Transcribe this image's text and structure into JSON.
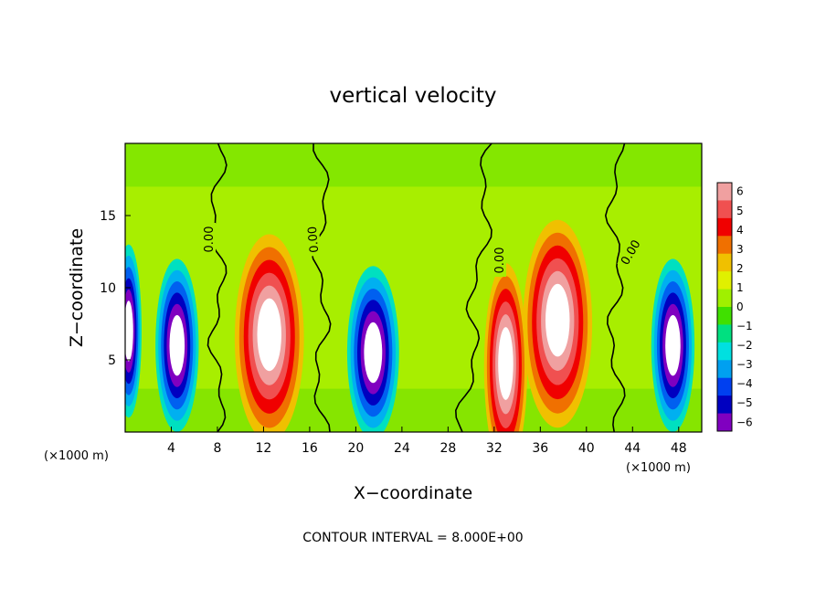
{
  "chart_data": {
    "type": "heatmap",
    "title": "vertical velocity",
    "xlabel": "X−coordinate",
    "ylabel": "Z−coordinate",
    "x_unit_left": "(×1000 m)",
    "x_unit_right": "(×1000 m)",
    "xlim": [
      0,
      50
    ],
    "ylim": [
      0,
      20
    ],
    "xticks": [
      4,
      8,
      12,
      16,
      20,
      24,
      28,
      32,
      36,
      40,
      44,
      48
    ],
    "yticks": [
      5,
      10,
      15
    ],
    "colorbar": {
      "ticks": [
        "6",
        "5",
        "4",
        "3",
        "2",
        "1",
        "0",
        "−1",
        "−2",
        "−3",
        "−4",
        "−5",
        "−6"
      ],
      "range": [
        -6,
        6
      ],
      "colors": [
        "#f0a0a0",
        "#f05050",
        "#f00000",
        "#f07000",
        "#f0c000",
        "#e0f000",
        "#a0f000",
        "#40e000",
        "#00e080",
        "#00e0e0",
        "#00a0f0",
        "#0040f0",
        "#0000c0",
        "#8000c0"
      ]
    },
    "contour_labels": [
      "0.00",
      "0.00",
      "0.00",
      "0.00"
    ],
    "footer": "CONTOUR INTERVAL = 8.000E+00",
    "features": [
      {
        "kind": "updraft",
        "x": 12.5,
        "z": 6.5,
        "w": 4.0
      },
      {
        "kind": "updraft",
        "x": 37.5,
        "z": 7.5,
        "w": 4.0
      },
      {
        "kind": "updraft",
        "x": 33.0,
        "z": 4.5,
        "w": 2.5
      },
      {
        "kind": "downdraft",
        "x": 4.5,
        "z": 6.0,
        "w": 2.5
      },
      {
        "kind": "downdraft",
        "x": 21.5,
        "z": 5.5,
        "w": 3.0
      },
      {
        "kind": "downdraft",
        "x": 47.5,
        "z": 6.0,
        "w": 2.5
      },
      {
        "kind": "downdraft",
        "x": 0.3,
        "z": 7.0,
        "w": 1.5
      }
    ]
  }
}
